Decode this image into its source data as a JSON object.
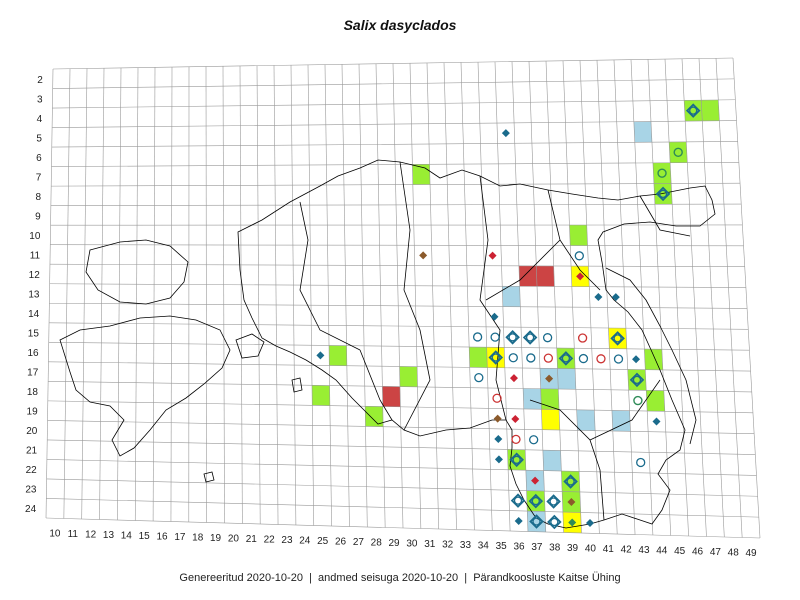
{
  "title": "Salix dasyclados",
  "footer": {
    "generated": "Genereeritud 2020-10-20",
    "data_state": "andmed seisuga 2020-10-20",
    "organization": "Pärandkoosluste Kaitse Ühing"
  },
  "separator": "|",
  "grid": {
    "cols": [
      10,
      11,
      12,
      13,
      14,
      15,
      16,
      17,
      18,
      19,
      20,
      21,
      22,
      23,
      24,
      25,
      26,
      27,
      28,
      29,
      30,
      31,
      32,
      33,
      34,
      35,
      36,
      37,
      38,
      39,
      40,
      41,
      42,
      43,
      44,
      45,
      46,
      47,
      48,
      49
    ],
    "rows": [
      2,
      3,
      4,
      5,
      6,
      7,
      8,
      9,
      10,
      11,
      12,
      13,
      14,
      15,
      16,
      17,
      18,
      19,
      20,
      21,
      22,
      23,
      24
    ]
  },
  "colors": {
    "green": "#99ee33",
    "blue": "#a8d4e6",
    "yellow": "#ffff00",
    "red": "#cc4444",
    "teal": "#1a6b8c",
    "crimson": "#cc2233",
    "brown": "#8b5a2b",
    "seagreen": "#2e8b57",
    "circle_teal": "#1a6b8c",
    "circle_red": "#cc3333",
    "grid_line": "#999999",
    "border": "#000000"
  },
  "cells": [
    {
      "c": 47,
      "r": 4,
      "f": "green"
    },
    {
      "c": 48,
      "r": 4,
      "f": "green"
    },
    {
      "c": 44,
      "r": 5,
      "f": "blue"
    },
    {
      "c": 46,
      "r": 6,
      "f": "green"
    },
    {
      "c": 45,
      "r": 7,
      "f": "green"
    },
    {
      "c": 45,
      "r": 8,
      "f": "green"
    },
    {
      "c": 31,
      "r": 7,
      "f": "green"
    },
    {
      "c": 40,
      "r": 10,
      "f": "green"
    },
    {
      "c": 37,
      "r": 12,
      "f": "red"
    },
    {
      "c": 38,
      "r": 12,
      "f": "red"
    },
    {
      "c": 40,
      "r": 12,
      "f": "yellow"
    },
    {
      "c": 36,
      "r": 13,
      "f": "blue"
    },
    {
      "c": 42,
      "r": 15,
      "f": "yellow"
    },
    {
      "c": 34,
      "r": 16,
      "f": "green"
    },
    {
      "c": 35,
      "r": 16,
      "f": "yellow"
    },
    {
      "c": 39,
      "r": 16,
      "f": "green"
    },
    {
      "c": 44,
      "r": 16,
      "f": "green"
    },
    {
      "c": 26,
      "r": 16,
      "f": "green"
    },
    {
      "c": 30,
      "r": 17,
      "f": "green"
    },
    {
      "c": 38,
      "r": 17,
      "f": "blue"
    },
    {
      "c": 39,
      "r": 17,
      "f": "blue"
    },
    {
      "c": 43,
      "r": 17,
      "f": "green"
    },
    {
      "c": 29,
      "r": 18,
      "f": "red"
    },
    {
      "c": 25,
      "r": 18,
      "f": "green"
    },
    {
      "c": 37,
      "r": 18,
      "f": "blue"
    },
    {
      "c": 38,
      "r": 18,
      "f": "green"
    },
    {
      "c": 44,
      "r": 18,
      "f": "green"
    },
    {
      "c": 28,
      "r": 19,
      "f": "green"
    },
    {
      "c": 38,
      "r": 19,
      "f": "yellow"
    },
    {
      "c": 40,
      "r": 19,
      "f": "blue"
    },
    {
      "c": 42,
      "r": 19,
      "f": "blue"
    },
    {
      "c": 38,
      "r": 21,
      "f": "blue"
    },
    {
      "c": 36,
      "r": 21,
      "f": "green"
    },
    {
      "c": 37,
      "r": 22,
      "f": "blue"
    },
    {
      "c": 39,
      "r": 22,
      "f": "green"
    },
    {
      "c": 37,
      "r": 23,
      "f": "green"
    },
    {
      "c": 39,
      "r": 23,
      "f": "green"
    },
    {
      "c": 37,
      "r": 24,
      "f": "blue"
    },
    {
      "c": 39,
      "r": 24,
      "f": "yellow"
    }
  ],
  "markers": [
    {
      "c": 47,
      "r": 4,
      "m": "circ-dia"
    },
    {
      "c": 46,
      "r": 6,
      "m": "gcircle"
    },
    {
      "c": 45,
      "r": 7,
      "m": "gcircle"
    },
    {
      "c": 45,
      "r": 8,
      "m": "circ-dia"
    },
    {
      "c": 36,
      "r": 5,
      "m": "diamond",
      "col": "teal"
    },
    {
      "c": 40,
      "r": 11,
      "m": "circle",
      "col": "teal"
    },
    {
      "c": 31,
      "r": 11,
      "m": "diamond",
      "col": "brown"
    },
    {
      "c": 35,
      "r": 11,
      "m": "diamond",
      "col": "crimson"
    },
    {
      "c": 40,
      "r": 12,
      "m": "diamond",
      "col": "crimson"
    },
    {
      "c": 41,
      "r": 13,
      "m": "diamond",
      "col": "teal"
    },
    {
      "c": 42,
      "r": 13,
      "m": "diamond",
      "col": "teal"
    },
    {
      "c": 35,
      "r": 14,
      "m": "diamond",
      "col": "teal"
    },
    {
      "c": 42,
      "r": 15,
      "m": "circ-dia"
    },
    {
      "c": 34,
      "r": 15,
      "m": "circle",
      "col": "teal"
    },
    {
      "c": 35,
      "r": 15,
      "m": "circle",
      "col": "teal"
    },
    {
      "c": 36,
      "r": 15,
      "m": "circ-dia"
    },
    {
      "c": 37,
      "r": 15,
      "m": "circ-dia"
    },
    {
      "c": 38,
      "r": 15,
      "m": "circle",
      "col": "teal"
    },
    {
      "c": 40,
      "r": 15,
      "m": "circle",
      "col": "red"
    },
    {
      "c": 35,
      "r": 16,
      "m": "circ-dia"
    },
    {
      "c": 36,
      "r": 16,
      "m": "circle",
      "col": "teal"
    },
    {
      "c": 37,
      "r": 16,
      "m": "circle",
      "col": "teal"
    },
    {
      "c": 38,
      "r": 16,
      "m": "circle",
      "col": "red"
    },
    {
      "c": 39,
      "r": 16,
      "m": "circ-dia"
    },
    {
      "c": 40,
      "r": 16,
      "m": "circle",
      "col": "teal"
    },
    {
      "c": 41,
      "r": 16,
      "m": "circle",
      "col": "red"
    },
    {
      "c": 42,
      "r": 16,
      "m": "circle",
      "col": "teal"
    },
    {
      "c": 43,
      "r": 16,
      "m": "diamond",
      "col": "teal"
    },
    {
      "c": 25,
      "r": 16,
      "m": "diamond",
      "col": "teal"
    },
    {
      "c": 34,
      "r": 17,
      "m": "circle",
      "col": "teal"
    },
    {
      "c": 36,
      "r": 17,
      "m": "diamond",
      "col": "crimson"
    },
    {
      "c": 38,
      "r": 17,
      "m": "diamond",
      "col": "brown"
    },
    {
      "c": 43,
      "r": 17,
      "m": "circ-dia"
    },
    {
      "c": 35,
      "r": 18,
      "m": "circle",
      "col": "red"
    },
    {
      "c": 43,
      "r": 18,
      "m": "gcircle"
    },
    {
      "c": 44,
      "r": 19,
      "m": "diamond",
      "col": "teal"
    },
    {
      "c": 35,
      "r": 19,
      "m": "diamond",
      "col": "brown"
    },
    {
      "c": 36,
      "r": 19,
      "m": "diamond",
      "col": "crimson"
    },
    {
      "c": 35,
      "r": 20,
      "m": "diamond",
      "col": "teal"
    },
    {
      "c": 36,
      "r": 20,
      "m": "circle",
      "col": "red"
    },
    {
      "c": 37,
      "r": 20,
      "m": "circle",
      "col": "teal"
    },
    {
      "c": 35,
      "r": 21,
      "m": "diamond",
      "col": "teal"
    },
    {
      "c": 36,
      "r": 21,
      "m": "circ-dia"
    },
    {
      "c": 43,
      "r": 21,
      "m": "circle",
      "col": "teal"
    },
    {
      "c": 37,
      "r": 22,
      "m": "diamond",
      "col": "crimson"
    },
    {
      "c": 39,
      "r": 22,
      "m": "circ-dia"
    },
    {
      "c": 36,
      "r": 23,
      "m": "circ-dia"
    },
    {
      "c": 37,
      "r": 23,
      "m": "circ-dia"
    },
    {
      "c": 38,
      "r": 23,
      "m": "circ-dia"
    },
    {
      "c": 39,
      "r": 23,
      "m": "diamond",
      "col": "brown"
    },
    {
      "c": 36,
      "r": 24,
      "m": "diamond",
      "col": "teal"
    },
    {
      "c": 37,
      "r": 24,
      "m": "circ-dia"
    },
    {
      "c": 38,
      "r": 24,
      "m": "circ-dia"
    },
    {
      "c": 39,
      "r": 24,
      "m": "diamond",
      "col": "seagreen"
    },
    {
      "c": 40,
      "r": 24,
      "m": "diamond",
      "col": "teal"
    }
  ]
}
